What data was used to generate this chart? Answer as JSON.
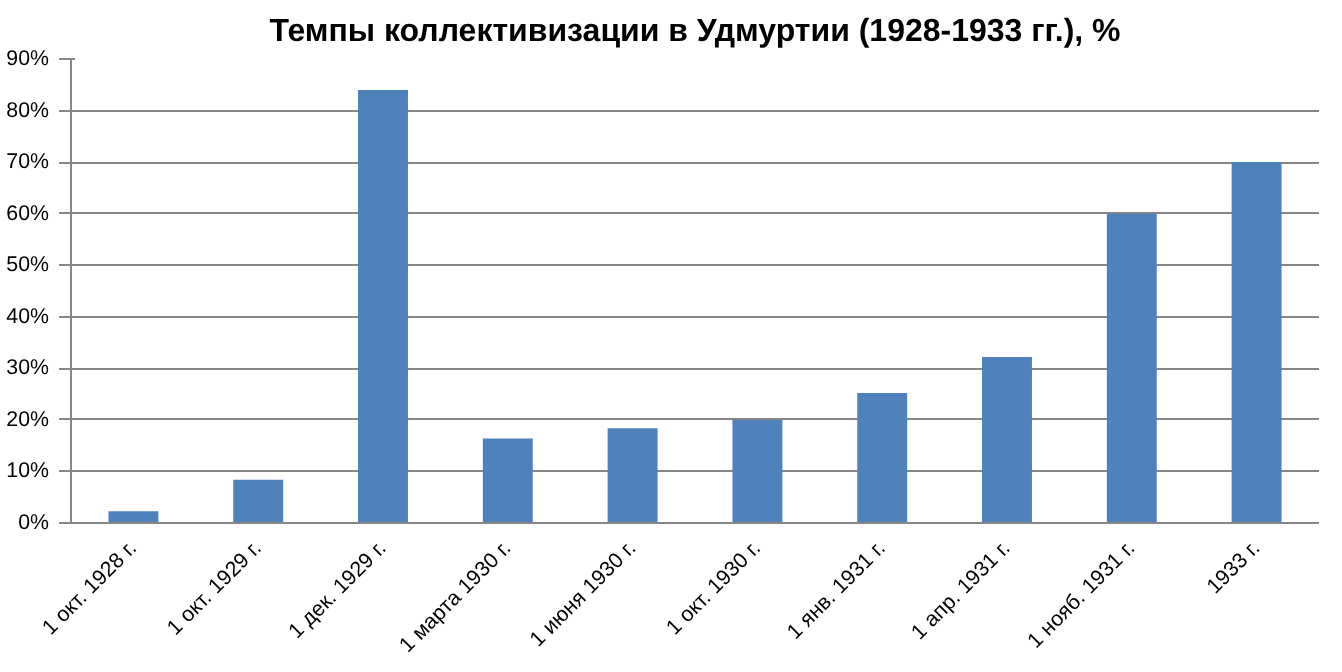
{
  "chart_data": {
    "type": "bar",
    "title": "Темпы коллективизации в Удмуртии (1928-1933 гг.), %",
    "categories": [
      "1 окт. 1928 г.",
      "1 окт. 1929 г.",
      "1 дек. 1929 г.",
      "1 марта 1930 г.",
      "1 июня 1930 г.",
      "1 окт. 1930 г.",
      "1 янв. 1931 г.",
      "1 апр. 1931 г.",
      "1 нояб. 1931 г.",
      "1933 г."
    ],
    "values": [
      2.3,
      8.4,
      84,
      16.4,
      18.4,
      20,
      25.2,
      32.2,
      60,
      70
    ],
    "color": "#4f81bd",
    "ylim": [
      0,
      90
    ],
    "yticks": [
      {
        "value": 0,
        "label": "0%"
      },
      {
        "value": 10,
        "label": "10%"
      },
      {
        "value": 20,
        "label": "20%"
      },
      {
        "value": 30,
        "label": "30%"
      },
      {
        "value": 40,
        "label": "40%"
      },
      {
        "value": 50,
        "label": "50%"
      },
      {
        "value": 60,
        "label": "60%"
      },
      {
        "value": 70,
        "label": "70%"
      },
      {
        "value": 80,
        "label": "80%"
      },
      {
        "value": 90,
        "label": "90%"
      }
    ],
    "grid": "y"
  }
}
